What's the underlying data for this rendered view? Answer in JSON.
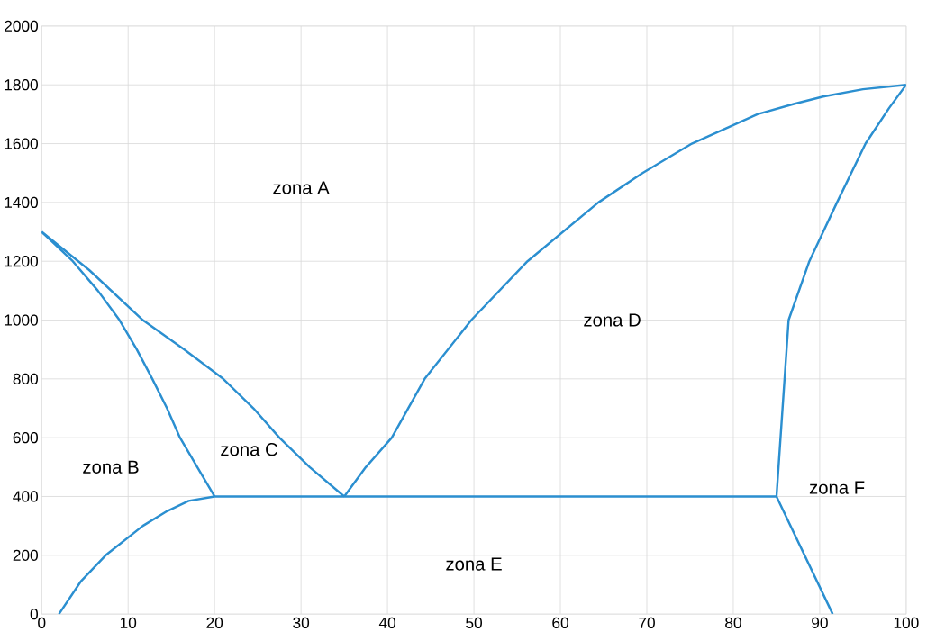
{
  "chart_data": {
    "type": "line",
    "xlim": [
      0,
      100
    ],
    "ylim": [
      0,
      2000
    ],
    "xticks": [
      0,
      10,
      20,
      30,
      40,
      50,
      60,
      70,
      80,
      90,
      100
    ],
    "yticks": [
      0,
      200,
      400,
      600,
      800,
      1000,
      1200,
      1400,
      1600,
      1800,
      2000
    ],
    "grid": true,
    "marker": "none",
    "line_style": "solid",
    "series": [
      {
        "color": "#2b8fd0",
        "x": [
          0,
          3.6,
          6.5,
          9,
          11,
          12.8,
          14.5,
          16,
          18,
          20
        ],
        "values": [
          1300,
          1200,
          1100,
          1000,
          900,
          800,
          700,
          600,
          500,
          400
        ]
      },
      {
        "color": "#2b8fd0",
        "x": [
          0,
          5.5,
          11.7,
          16.5,
          21,
          24.5,
          27.5,
          31,
          35
        ],
        "values": [
          1300,
          1170,
          1000,
          900,
          800,
          700,
          600,
          500,
          400
        ]
      },
      {
        "color": "#2b8fd0",
        "x": [
          35,
          37.5,
          40.5,
          44.3,
          49.7,
          56.2,
          64.4,
          69.5,
          75.2,
          82.8,
          87,
          90.4,
          95,
          100
        ],
        "values": [
          400,
          500,
          600,
          800,
          1000,
          1200,
          1400,
          1500,
          1600,
          1700,
          1735,
          1760,
          1785,
          1800
        ]
      },
      {
        "color": "#2b8fd0",
        "x": [
          85,
          85.7,
          86.4,
          88.8,
          92,
          95.3,
          98,
          100
        ],
        "values": [
          400,
          700,
          1000,
          1200,
          1400,
          1600,
          1720,
          1800
        ]
      },
      {
        "color": "#2b8fd0",
        "x": [
          2,
          4.5,
          7.4,
          11.7,
          14.5,
          17,
          20,
          35,
          85,
          91.5
        ],
        "values": [
          0,
          110,
          200,
          300,
          350,
          385,
          400,
          400,
          400,
          0
        ]
      }
    ],
    "annotations": [
      "zona A",
      "zona B",
      "zona C",
      "zona D",
      "zona E",
      "zona F"
    ]
  }
}
